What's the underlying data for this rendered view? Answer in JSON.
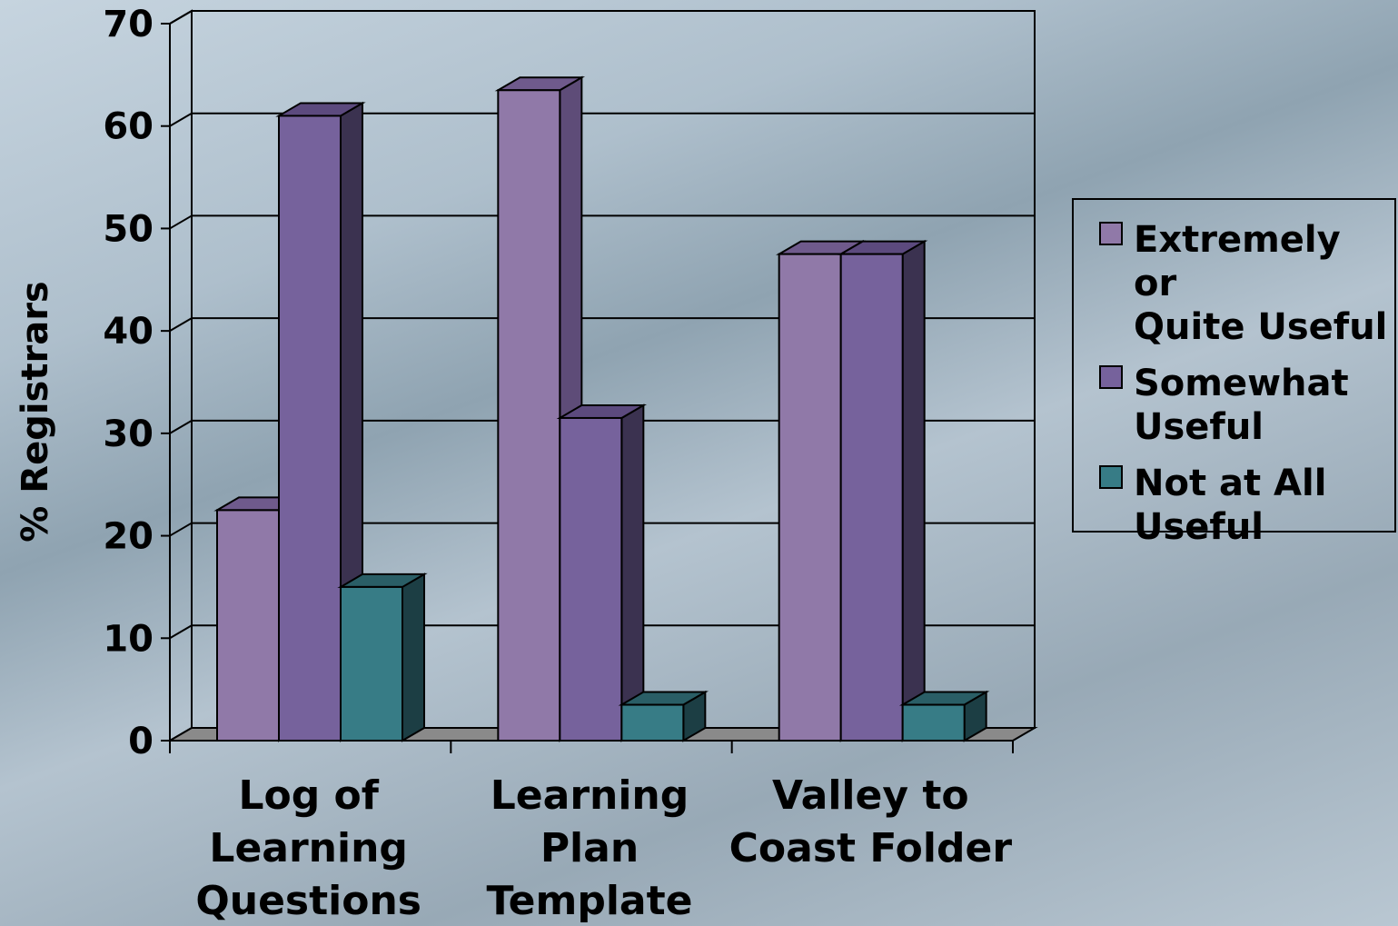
{
  "chart_data": {
    "type": "bar",
    "categories": [
      "Log of Learning Questions",
      "Learning Plan Template",
      "Valley to Coast Folder"
    ],
    "category_labels": [
      "Log of\nLearning\nQuestions",
      "Learning\nPlan\nTemplate",
      "Valley to\nCoast Folder"
    ],
    "series": [
      {
        "name": "Extremely or Quite Useful",
        "legend_label": "Extremely or\nQuite Useful",
        "values": [
          22.5,
          63.5,
          47.5
        ],
        "color": "#9079a8",
        "side": "#5e4c78",
        "top": "#6f5a8c"
      },
      {
        "name": "Somewhat Useful",
        "legend_label": "Somewhat\nUseful",
        "values": [
          61,
          31.5,
          47.5
        ],
        "color": "#76629c",
        "side": "#3b3250",
        "top": "#5c4a7e"
      },
      {
        "name": "Not at All Useful",
        "legend_label": "Not at All\nUseful",
        "values": [
          15,
          3.5,
          3.5
        ],
        "color": "#377c86",
        "side": "#1c3e44",
        "top": "#2a5e66"
      }
    ],
    "ylabel": "% Registrars",
    "xlabel": "",
    "ylim": [
      0,
      70
    ],
    "yticks": [
      0,
      10,
      20,
      30,
      40,
      50,
      60,
      70
    ],
    "grid": true,
    "legend_position": "right"
  }
}
